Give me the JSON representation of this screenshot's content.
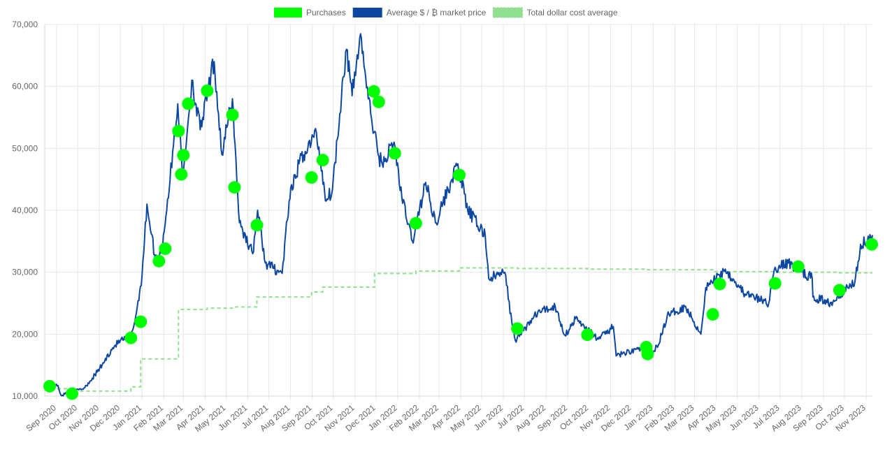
{
  "chart_data": {
    "type": "line",
    "legend": {
      "placement": "top-center"
    },
    "grid": true,
    "ylim": [
      10000,
      70000
    ],
    "yticks": [
      "10,000",
      "20,000",
      "30,000",
      "40,000",
      "50,000",
      "60,000",
      "70,000"
    ],
    "xlim": [
      "2020-08-15",
      "2023-11-10"
    ],
    "xticks": [
      {
        "label": "Sep 2020",
        "date": "2020-09-01"
      },
      {
        "label": "Oct 2020",
        "date": "2020-10-01"
      },
      {
        "label": "Nov 2020",
        "date": "2020-11-01"
      },
      {
        "label": "Dec 2020",
        "date": "2020-12-01"
      },
      {
        "label": "Jan 2021",
        "date": "2021-01-01"
      },
      {
        "label": "Feb 2021",
        "date": "2021-02-01"
      },
      {
        "label": "Mar 2021",
        "date": "2021-03-01"
      },
      {
        "label": "Apr 2021",
        "date": "2021-04-01"
      },
      {
        "label": "May 2021",
        "date": "2021-05-01"
      },
      {
        "label": "Jun 2021",
        "date": "2021-06-01"
      },
      {
        "label": "Jul 2021",
        "date": "2021-07-01"
      },
      {
        "label": "Aug 2021",
        "date": "2021-08-01"
      },
      {
        "label": "Sep 2021",
        "date": "2021-09-01"
      },
      {
        "label": "Oct 2021",
        "date": "2021-10-01"
      },
      {
        "label": "Nov 2021",
        "date": "2021-11-01"
      },
      {
        "label": "Dec 2021",
        "date": "2021-12-01"
      },
      {
        "label": "Jan 2022",
        "date": "2022-01-01"
      },
      {
        "label": "Feb 2022",
        "date": "2022-02-01"
      },
      {
        "label": "Mar 2022",
        "date": "2022-03-01"
      },
      {
        "label": "Apr 2022",
        "date": "2022-04-01"
      },
      {
        "label": "May 2022",
        "date": "2022-05-01"
      },
      {
        "label": "Jun 2022",
        "date": "2022-06-01"
      },
      {
        "label": "Jul 2022",
        "date": "2022-07-01"
      },
      {
        "label": "Aug 2022",
        "date": "2022-08-01"
      },
      {
        "label": "Sep 2022",
        "date": "2022-09-01"
      },
      {
        "label": "Oct 2022",
        "date": "2022-10-01"
      },
      {
        "label": "Nov 2022",
        "date": "2022-11-01"
      },
      {
        "label": "Dec 2022",
        "date": "2022-12-01"
      },
      {
        "label": "Jan 2023",
        "date": "2023-01-01"
      },
      {
        "label": "Feb 2023",
        "date": "2023-02-01"
      },
      {
        "label": "Mar 2023",
        "date": "2023-03-01"
      },
      {
        "label": "Apr 2023",
        "date": "2023-04-01"
      },
      {
        "label": "May 2023",
        "date": "2023-05-01"
      },
      {
        "label": "Jun 2023",
        "date": "2023-06-01"
      },
      {
        "label": "Jul 2023",
        "date": "2023-07-01"
      },
      {
        "label": "Aug 2023",
        "date": "2023-08-01"
      },
      {
        "label": "Sep 2023",
        "date": "2023-09-01"
      },
      {
        "label": "Oct 2023",
        "date": "2023-10-01"
      },
      {
        "label": "Nov 2023",
        "date": "2023-11-01"
      }
    ],
    "series": [
      {
        "name": "Purchases",
        "kind": "scatter",
        "color": "#00ff00",
        "points": [
          [
            "2020-08-22",
            11600
          ],
          [
            "2020-09-23",
            10400
          ],
          [
            "2020-12-16",
            19400
          ],
          [
            "2020-12-30",
            22000
          ],
          [
            "2021-01-25",
            31800
          ],
          [
            "2021-02-03",
            33800
          ],
          [
            "2021-02-22",
            52800
          ],
          [
            "2021-02-26",
            45800
          ],
          [
            "2021-03-01",
            48900
          ],
          [
            "2021-03-08",
            57200
          ],
          [
            "2021-04-04",
            59300
          ],
          [
            "2021-05-10",
            55400
          ],
          [
            "2021-05-13",
            43700
          ],
          [
            "2021-06-14",
            37600
          ],
          [
            "2021-08-31",
            45300
          ],
          [
            "2021-09-16",
            48100
          ],
          [
            "2021-11-28",
            59200
          ],
          [
            "2021-12-05",
            57500
          ],
          [
            "2021-12-28",
            49200
          ],
          [
            "2022-01-27",
            37900
          ],
          [
            "2022-03-30",
            45700
          ],
          [
            "2022-06-21",
            20900
          ],
          [
            "2022-09-29",
            19900
          ],
          [
            "2022-12-22",
            17900
          ],
          [
            "2022-12-24",
            16800
          ],
          [
            "2023-03-27",
            23200
          ],
          [
            "2023-04-06",
            28100
          ],
          [
            "2023-06-24",
            28200
          ],
          [
            "2023-07-27",
            30900
          ],
          [
            "2023-09-24",
            27100
          ],
          [
            "2023-11-09",
            34500
          ]
        ]
      },
      {
        "name": "Average $ / ₿ market price",
        "kind": "line",
        "color": "#0d47a1",
        "points": [
          [
            "2020-08-15",
            11800
          ],
          [
            "2020-08-25",
            11500
          ],
          [
            "2020-09-03",
            11700
          ],
          [
            "2020-09-07",
            10200
          ],
          [
            "2020-09-22",
            10500
          ],
          [
            "2020-10-10",
            11300
          ],
          [
            "2020-10-22",
            12900
          ],
          [
            "2020-11-05",
            15000
          ],
          [
            "2020-11-20",
            17800
          ],
          [
            "2020-12-01",
            19000
          ],
          [
            "2020-12-16",
            19400
          ],
          [
            "2020-12-24",
            23500
          ],
          [
            "2021-01-01",
            29500
          ],
          [
            "2021-01-08",
            41000
          ],
          [
            "2021-01-20",
            32000
          ],
          [
            "2021-01-29",
            33500
          ],
          [
            "2021-02-10",
            45000
          ],
          [
            "2021-02-21",
            57200
          ],
          [
            "2021-02-28",
            45000
          ],
          [
            "2021-03-13",
            61000
          ],
          [
            "2021-03-25",
            53000
          ],
          [
            "2021-04-14",
            64000
          ],
          [
            "2021-04-25",
            49000
          ],
          [
            "2021-05-10",
            58000
          ],
          [
            "2021-05-20",
            38000
          ],
          [
            "2021-06-08",
            33000
          ],
          [
            "2021-06-15",
            40000
          ],
          [
            "2021-06-26",
            31500
          ],
          [
            "2021-07-20",
            29800
          ],
          [
            "2021-07-30",
            41500
          ],
          [
            "2021-08-13",
            47500
          ],
          [
            "2021-08-22",
            49500
          ],
          [
            "2021-09-07",
            52500
          ],
          [
            "2021-09-21",
            41500
          ],
          [
            "2021-09-30",
            43500
          ],
          [
            "2021-10-15",
            61500
          ],
          [
            "2021-10-20",
            66000
          ],
          [
            "2021-10-28",
            58500
          ],
          [
            "2021-11-09",
            68500
          ],
          [
            "2021-11-20",
            58000
          ],
          [
            "2021-12-04",
            49000
          ],
          [
            "2021-12-10",
            47500
          ],
          [
            "2021-12-27",
            51000
          ],
          [
            "2022-01-07",
            42000
          ],
          [
            "2022-01-22",
            35000
          ],
          [
            "2022-02-10",
            44500
          ],
          [
            "2022-02-24",
            38000
          ],
          [
            "2022-03-28",
            47500
          ],
          [
            "2022-04-11",
            40000
          ],
          [
            "2022-05-06",
            36000
          ],
          [
            "2022-05-11",
            29000
          ],
          [
            "2022-06-03",
            30000
          ],
          [
            "2022-06-13",
            22000
          ],
          [
            "2022-06-18",
            19000
          ],
          [
            "2022-07-20",
            23500
          ],
          [
            "2022-08-14",
            24500
          ],
          [
            "2022-08-28",
            19800
          ],
          [
            "2022-09-12",
            22500
          ],
          [
            "2022-10-15",
            19200
          ],
          [
            "2022-11-05",
            21200
          ],
          [
            "2022-11-09",
            16500
          ],
          [
            "2022-12-14",
            17800
          ],
          [
            "2022-12-31",
            16500
          ],
          [
            "2023-01-13",
            19900
          ],
          [
            "2023-01-21",
            23000
          ],
          [
            "2023-02-16",
            24500
          ],
          [
            "2023-03-10",
            20000
          ],
          [
            "2023-03-17",
            27500
          ],
          [
            "2023-04-14",
            30500
          ],
          [
            "2023-05-12",
            26500
          ],
          [
            "2023-06-15",
            25000
          ],
          [
            "2023-06-23",
            30500
          ],
          [
            "2023-07-13",
            31500
          ],
          [
            "2023-08-16",
            29000
          ],
          [
            "2023-08-17",
            26000
          ],
          [
            "2023-09-11",
            25100
          ],
          [
            "2023-10-16",
            28500
          ],
          [
            "2023-10-24",
            34500
          ],
          [
            "2023-11-10",
            36000
          ]
        ]
      },
      {
        "name": "Total dollar cost average",
        "kind": "step",
        "color": "#90e090",
        "points": [
          [
            "2020-08-15",
            11200
          ],
          [
            "2020-09-23",
            10800
          ],
          [
            "2020-12-16",
            11500
          ],
          [
            "2020-12-30",
            16000
          ],
          [
            "2021-01-25",
            16000
          ],
          [
            "2021-02-22",
            24000
          ],
          [
            "2021-04-04",
            24200
          ],
          [
            "2021-05-10",
            24400
          ],
          [
            "2021-06-14",
            26000
          ],
          [
            "2021-08-31",
            26800
          ],
          [
            "2021-09-16",
            27600
          ],
          [
            "2021-11-28",
            27600
          ],
          [
            "2021-11-29",
            29800
          ],
          [
            "2022-01-27",
            30200
          ],
          [
            "2022-03-30",
            30700
          ],
          [
            "2022-06-21",
            30600
          ],
          [
            "2022-09-29",
            30500
          ],
          [
            "2022-12-22",
            30400
          ],
          [
            "2023-03-27",
            30100
          ],
          [
            "2023-06-24",
            30000
          ],
          [
            "2023-09-24",
            29900
          ],
          [
            "2023-11-10",
            29900
          ]
        ]
      }
    ]
  }
}
